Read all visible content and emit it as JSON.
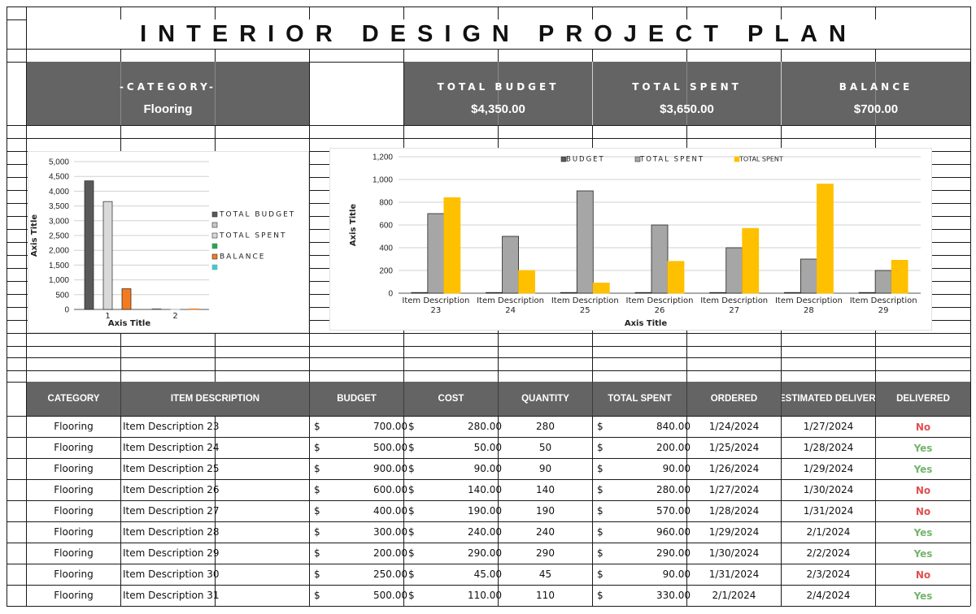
{
  "title": "INTERIOR DESIGN PROJECT PLAN",
  "summary": {
    "category_label": "-CATEGORY-",
    "category_value": "Flooring",
    "total_budget_label": "TOTAL BUDGET",
    "total_budget_value": "$4,350.00",
    "total_spent_label": "TOTAL SPENT",
    "total_spent_value": "$3,650.00",
    "balance_label": "BALANCE",
    "balance_value": "$700.00"
  },
  "colors": {
    "header_gray": "#646464",
    "budget_bar": "#595959",
    "spent_bar_light": "#d9d9d9",
    "balance_orange": "#f47a1f",
    "spent_bar_gray": "#a6a6a6",
    "spent_yellow": "#ffc000",
    "green_marker": "#2e9e5a",
    "teal_marker": "#4fc3c7",
    "no_red": "#e05050",
    "yes_green": "#73b56b"
  },
  "chart_data": [
    {
      "type": "bar",
      "categories": [
        "1",
        "2"
      ],
      "series": [
        {
          "name": "TOTAL BUDGET",
          "values": [
            4350,
            0
          ]
        },
        {
          "name": "TOTAL SPENT",
          "values": [
            3650,
            0
          ]
        },
        {
          "name": "BALANCE",
          "values": [
            700,
            0
          ]
        }
      ],
      "legend_labels": [
        "TOTAL BUDGET",
        "TOTAL SPENT",
        "BALANCE"
      ],
      "xlabel": "Axis Title",
      "ylabel": "Axis Title",
      "ylim": [
        0,
        5000
      ],
      "yticks": [
        "0",
        "500",
        "1,000",
        "1,500",
        "2,000",
        "2,500",
        "3,000",
        "3,500",
        "4,000",
        "4,500",
        "5,000"
      ],
      "legend": "right",
      "grid": true
    },
    {
      "type": "bar",
      "categories": [
        "Item Description 23",
        "Item Description 24",
        "Item Description 25",
        "Item Description 26",
        "Item Description 27",
        "Item Description 28",
        "Item Description 29"
      ],
      "category_lines": [
        [
          "Item Description",
          "23"
        ],
        [
          "Item Description",
          "24"
        ],
        [
          "Item Description",
          "25"
        ],
        [
          "Item Description",
          "26"
        ],
        [
          "Item Description",
          "27"
        ],
        [
          "Item Description",
          "28"
        ],
        [
          "Item Description",
          "29"
        ]
      ],
      "series": [
        {
          "name": "BUDGET",
          "values": [
            0,
            0,
            0,
            0,
            0,
            0,
            0
          ]
        },
        {
          "name": "TOTAL SPENT",
          "values": [
            700,
            500,
            900,
            600,
            400,
            300,
            200
          ]
        },
        {
          "name": "TOTAL SPENT",
          "values": [
            840,
            200,
            90,
            280,
            570,
            960,
            290
          ]
        }
      ],
      "legend_labels": [
        "BUDGET",
        "TOTAL SPENT",
        "TOTAL SPENT"
      ],
      "xlabel": "Axis Title",
      "ylabel": "Axis Title",
      "ylim": [
        0,
        1200
      ],
      "yticks": [
        "0",
        "200",
        "400",
        "600",
        "800",
        "1,000",
        "1,200"
      ],
      "legend": "top",
      "grid": true
    }
  ],
  "table": {
    "headers": [
      "CATEGORY",
      "ITEM DESCRIPTION",
      "BUDGET",
      "COST",
      "QUANTITY",
      "TOTAL SPENT",
      "ORDERED",
      "ESTIMATED DELIVERY",
      "DELIVERED"
    ],
    "currency_symbol": "$",
    "rows": [
      {
        "category": "Flooring",
        "item": "Item Description 23",
        "budget": "700.00",
        "cost": "280.00",
        "quantity": "280",
        "total_spent": "840.00",
        "ordered": "1/24/2024",
        "est_delivery": "1/27/2024",
        "delivered": "No"
      },
      {
        "category": "Flooring",
        "item": "Item Description 24",
        "budget": "500.00",
        "cost": "50.00",
        "quantity": "50",
        "total_spent": "200.00",
        "ordered": "1/25/2024",
        "est_delivery": "1/28/2024",
        "delivered": "Yes"
      },
      {
        "category": "Flooring",
        "item": "Item Description 25",
        "budget": "900.00",
        "cost": "90.00",
        "quantity": "90",
        "total_spent": "90.00",
        "ordered": "1/26/2024",
        "est_delivery": "1/29/2024",
        "delivered": "Yes"
      },
      {
        "category": "Flooring",
        "item": "Item Description 26",
        "budget": "600.00",
        "cost": "140.00",
        "quantity": "140",
        "total_spent": "280.00",
        "ordered": "1/27/2024",
        "est_delivery": "1/30/2024",
        "delivered": "No"
      },
      {
        "category": "Flooring",
        "item": "Item Description 27",
        "budget": "400.00",
        "cost": "190.00",
        "quantity": "190",
        "total_spent": "570.00",
        "ordered": "1/28/2024",
        "est_delivery": "1/31/2024",
        "delivered": "No"
      },
      {
        "category": "Flooring",
        "item": "Item Description 28",
        "budget": "300.00",
        "cost": "240.00",
        "quantity": "240",
        "total_spent": "960.00",
        "ordered": "1/29/2024",
        "est_delivery": "2/1/2024",
        "delivered": "Yes"
      },
      {
        "category": "Flooring",
        "item": "Item Description 29",
        "budget": "200.00",
        "cost": "290.00",
        "quantity": "290",
        "total_spent": "290.00",
        "ordered": "1/30/2024",
        "est_delivery": "2/2/2024",
        "delivered": "Yes"
      },
      {
        "category": "Flooring",
        "item": "Item Description 30",
        "budget": "250.00",
        "cost": "45.00",
        "quantity": "45",
        "total_spent": "90.00",
        "ordered": "1/31/2024",
        "est_delivery": "2/3/2024",
        "delivered": "No"
      },
      {
        "category": "Flooring",
        "item": "Item Description 31",
        "budget": "500.00",
        "cost": "110.00",
        "quantity": "110",
        "total_spent": "330.00",
        "ordered": "2/1/2024",
        "est_delivery": "2/4/2024",
        "delivered": "Yes"
      }
    ]
  }
}
